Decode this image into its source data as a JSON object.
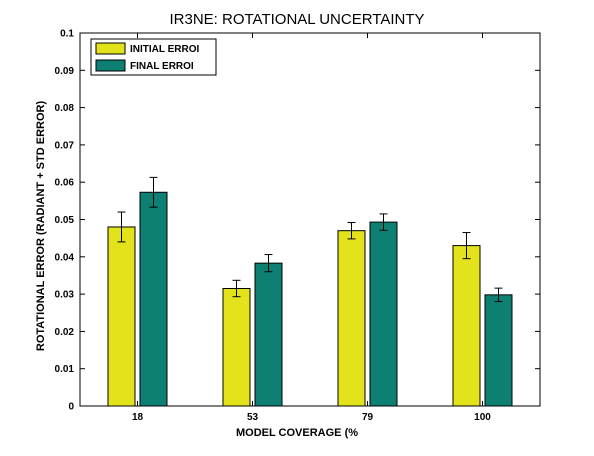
{
  "chart_data": {
    "type": "bar",
    "title": "IR3NE: ROTATIONAL UNCERTAINTY",
    "xlabel": "MODEL COVERAGE (%",
    "ylabel": "ROTATIONAL ERROR (RADIANT + STD ERROR)",
    "categories": [
      "18",
      "53",
      "79",
      "100"
    ],
    "ylim": [
      0,
      0.1
    ],
    "yticks": [
      "0",
      "0.01",
      "0.02",
      "0.03",
      "0.04",
      "0.05",
      "0.06",
      "0.07",
      "0.08",
      "0.09",
      "0.1"
    ],
    "grid": false,
    "legend_position": "top-left",
    "series": [
      {
        "name": "INITIAL ERROI",
        "color": "#e3e31c",
        "values": [
          0.048,
          0.0315,
          0.047,
          0.043
        ],
        "errors": [
          0.004,
          0.0022,
          0.0022,
          0.0035
        ]
      },
      {
        "name": "FINAL ERROI",
        "color": "#0e8073",
        "values": [
          0.0573,
          0.0383,
          0.0493,
          0.0298
        ],
        "errors": [
          0.004,
          0.0023,
          0.0022,
          0.0018
        ]
      }
    ]
  }
}
